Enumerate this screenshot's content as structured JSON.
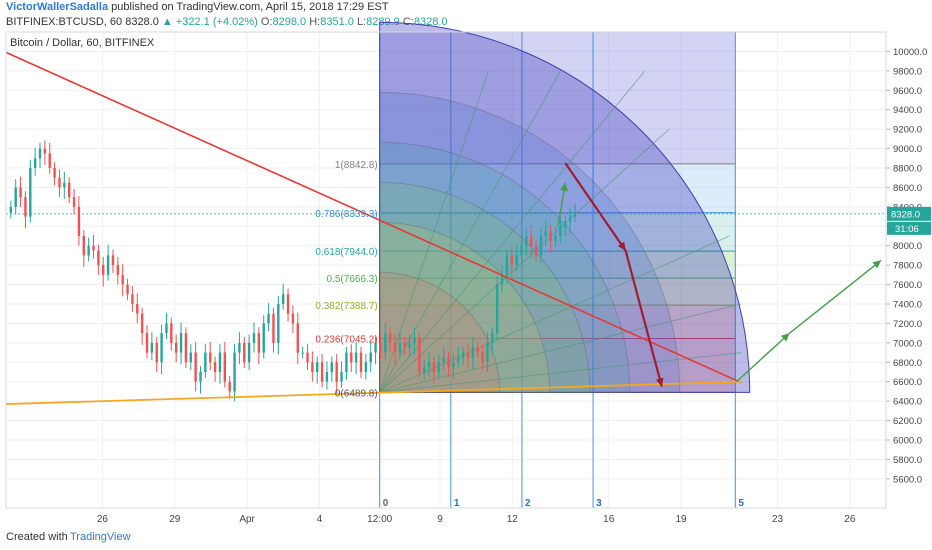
{
  "header": {
    "author": "VictorWallerSadalla",
    "published": "published on TradingView.com, April 15, 2018 17:29 EST",
    "symbol": "BITFINEX:BTCUSD, 60",
    "last": "8328.0",
    "change": "▲ +322.1 (+4.02%)",
    "o_label": "O:",
    "o": "8298.0",
    "h_label": "H:",
    "h": "8351.0",
    "l_label": "L:",
    "l": "8289.9",
    "c_label": "C:",
    "c": "8328.0"
  },
  "footer": {
    "created_with": "Created with",
    "brand": "TradingView"
  },
  "chart_data": {
    "type": "candlestick",
    "title": "Bitcoin / Dollar, 60, BITFINEX",
    "ylim": [
      5300,
      10200
    ],
    "y_ticks": [
      "5600.0",
      "5800.0",
      "6000.0",
      "6200.0",
      "6400.0",
      "6600.0",
      "6800.0",
      "7000.0",
      "7200.0",
      "7400.0",
      "7600.0",
      "7800.0",
      "8000.0",
      "8200.0",
      "8400.0",
      "8600.0",
      "8800.0",
      "9000.0",
      "9200.0",
      "9400.0",
      "9600.0",
      "9800.0",
      "10000.0"
    ],
    "y_tick_values": [
      5600,
      5800,
      6000,
      6200,
      6400,
      6600,
      6800,
      7000,
      7200,
      7400,
      7600,
      7800,
      8000,
      8200,
      8400,
      8600,
      8800,
      9000,
      9200,
      9400,
      9600,
      9800,
      10000
    ],
    "x_ticks": [
      {
        "label": "26",
        "t": 4
      },
      {
        "label": "29",
        "t": 7
      },
      {
        "label": "Apr",
        "t": 10
      },
      {
        "label": "4",
        "t": 13
      },
      {
        "label": "12:00",
        "t": 15.5
      },
      {
        "label": "9",
        "t": 18
      },
      {
        "label": "12",
        "t": 21
      },
      {
        "label": "16",
        "t": 25
      },
      {
        "label": "19",
        "t": 28
      },
      {
        "label": "23",
        "t": 32
      },
      {
        "label": "26",
        "t": 35
      }
    ],
    "x_range_days": [
      0,
      36.5
    ],
    "candles_close": [
      8400,
      8600,
      8500,
      8300,
      8800,
      8900,
      9000,
      8950,
      8800,
      8700,
      8600,
      8650,
      8500,
      8400,
      8100,
      7900,
      8000,
      7950,
      7800,
      7700,
      7900,
      7800,
      7700,
      7600,
      7500,
      7400,
      7300,
      7100,
      6900,
      7000,
      6800,
      7100,
      7200,
      7000,
      6900,
      7100,
      6800,
      6900,
      6600,
      6700,
      6900,
      6800,
      6700,
      6900,
      6600,
      6500,
      6900,
      7000,
      6800,
      7000,
      7100,
      6900,
      7200,
      7300,
      7000,
      7400,
      7500,
      7300,
      7200,
      6900,
      6900,
      6800,
      6700,
      6800,
      6600,
      6700,
      6800,
      6600,
      6700,
      6900,
      6800,
      6900,
      6700,
      6800,
      6900,
      7000,
      6900,
      7100,
      7000,
      6900,
      7000,
      6950,
      7000,
      7050,
      6700,
      6750,
      6800,
      6700,
      6800,
      6850,
      6750,
      6800,
      6850,
      6900,
      6850,
      6950,
      6900,
      6800,
      7000,
      7100,
      7600,
      7700,
      7900,
      7800,
      7900,
      8000,
      8100,
      8000,
      7900,
      8100,
      8150,
      8050,
      8100,
      8200,
      8250,
      8300,
      8328
    ],
    "current_price": "8328.0",
    "countdown": "31:06",
    "fib_levels": [
      {
        "label": "1(8842.8)",
        "value": 8842.8,
        "color": "#808080",
        "fill": "rgba(128,128,128,0.18)"
      },
      {
        "label": "0.786(8339.3)",
        "value": 8339.3,
        "color": "#3a8fd9",
        "fill": "rgba(120,180,240,0.25)"
      },
      {
        "label": "0.618(7944.0)",
        "value": 7944.0,
        "color": "#26a69a",
        "fill": "rgba(100,200,180,0.25)"
      },
      {
        "label": "0.5(7666.3)",
        "value": 7666.3,
        "color": "#4caf50",
        "fill": "rgba(120,200,100,0.25)"
      },
      {
        "label": "0.382(7388.7)",
        "value": 7388.7,
        "color": "#9aae30",
        "fill": "rgba(200,220,100,0.30)"
      },
      {
        "label": "0.236(7045.2)",
        "value": 7045.2,
        "color": "#e53935",
        "fill": "rgba(240,150,120,0.35)"
      },
      {
        "label": "0(6489.8)",
        "value": 6489.8,
        "color": "#555555",
        "fill": "rgba(230,110,100,0.30)"
      }
    ],
    "fib_time_labels": [
      "0",
      "1",
      "2",
      "3",
      "5"
    ],
    "lines": {
      "red_trend": [
        [
          0,
          9990
        ],
        [
          30.5,
          6590
        ]
      ],
      "orange_support": [
        [
          0,
          6370
        ],
        [
          30.5,
          6600
        ]
      ],
      "green_up_1": [
        [
          22.9,
          8200
        ],
        [
          23.2,
          8650
        ]
      ],
      "green_up_2": [
        [
          30.3,
          6600
        ],
        [
          32.5,
          7100
        ]
      ],
      "green_up_3": [
        [
          32.5,
          7100
        ],
        [
          36.3,
          7850
        ]
      ],
      "darkred_1": [
        [
          23.2,
          8850
        ],
        [
          25.7,
          7950
        ]
      ],
      "darkred_2": [
        [
          25.7,
          7950
        ],
        [
          27.2,
          6550
        ]
      ]
    }
  }
}
